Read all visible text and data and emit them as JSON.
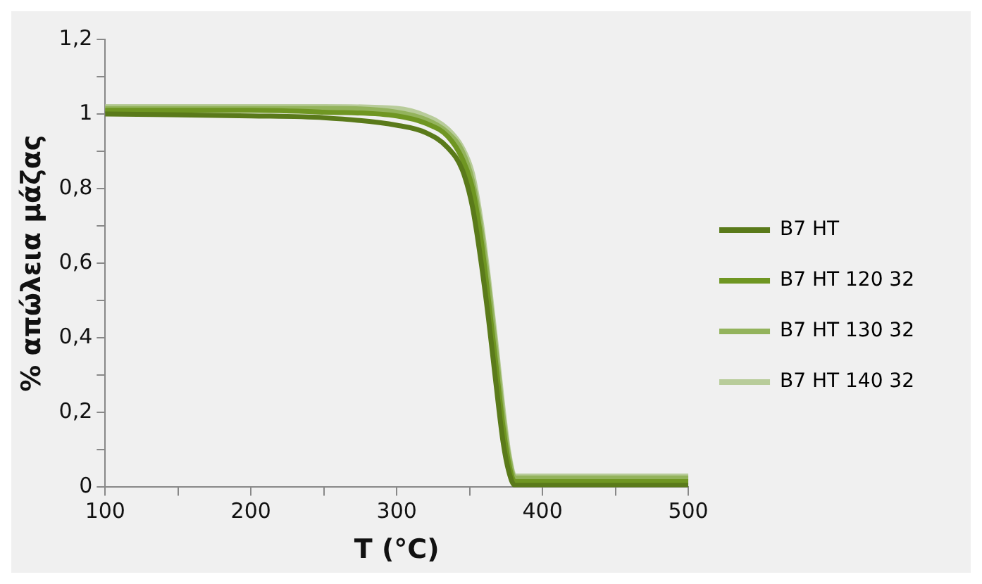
{
  "chart_data": {
    "type": "line",
    "xlabel": "T (°C)",
    "ylabel": "% απώλεια μάζας",
    "xlim": [
      100,
      500
    ],
    "xticks": [
      100,
      {
        "value": 150,
        "label": null
      },
      200,
      {
        "value": 250,
        "label": null
      },
      300,
      {
        "value": 350,
        "label": null
      },
      400,
      {
        "value": 450,
        "label": null
      },
      500
    ],
    "ylim": [
      0,
      1.2
    ],
    "yticks": [
      0,
      {
        "value": 0.1,
        "label": null
      },
      {
        "value": 0.2,
        "label": "0,2"
      },
      {
        "value": 0.3,
        "label": null
      },
      {
        "value": 0.4,
        "label": "0,4"
      },
      {
        "value": 0.5,
        "label": null
      },
      {
        "value": 0.6,
        "label": "0,6"
      },
      {
        "value": 0.7,
        "label": null
      },
      {
        "value": 0.8,
        "label": "0,8"
      },
      {
        "value": 0.9,
        "label": null
      },
      1,
      {
        "value": 1.1,
        "label": null
      },
      {
        "value": 1.2,
        "label": "1,2"
      }
    ],
    "x": [
      100,
      200,
      250,
      300,
      320,
      335,
      345,
      352,
      358,
      363,
      368,
      373,
      377,
      381,
      390,
      450,
      500
    ],
    "series": [
      {
        "name": "B7 HT",
        "color": "#5a7a1a",
        "values": [
          1.0,
          0.995,
          0.99,
          0.97,
          0.95,
          0.91,
          0.85,
          0.75,
          0.6,
          0.45,
          0.28,
          0.12,
          0.04,
          0.005,
          0.005,
          0.005,
          0.005
        ]
      },
      {
        "name": "B7 HT 120 32",
        "color": "#6f9622",
        "values": [
          1.01,
          1.01,
          1.005,
          0.995,
          0.975,
          0.94,
          0.88,
          0.8,
          0.66,
          0.5,
          0.33,
          0.16,
          0.06,
          0.015,
          0.015,
          0.015,
          0.015
        ]
      },
      {
        "name": "B7 HT 130 32",
        "color": "#93b35c",
        "values": [
          1.015,
          1.015,
          1.015,
          1.005,
          0.985,
          0.95,
          0.9,
          0.82,
          0.69,
          0.54,
          0.37,
          0.19,
          0.08,
          0.025,
          0.025,
          0.025,
          0.025
        ]
      },
      {
        "name": "B7 HT 140 32",
        "color": "#b8cc9a",
        "values": [
          1.02,
          1.02,
          1.02,
          1.015,
          0.995,
          0.96,
          0.91,
          0.84,
          0.71,
          0.56,
          0.39,
          0.21,
          0.09,
          0.03,
          0.03,
          0.03,
          0.03
        ]
      }
    ],
    "legend": "right",
    "marker": "none",
    "line_style": "solid",
    "grid": false
  }
}
